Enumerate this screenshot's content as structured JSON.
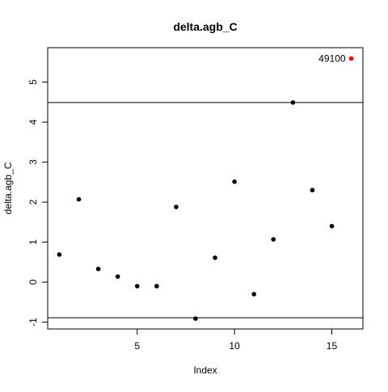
{
  "chart_data": {
    "type": "scatter",
    "title": "delta.agb_C",
    "xlabel": "Index",
    "ylabel": "delta.agb_C",
    "xlim": [
      0.4,
      16.6
    ],
    "ylim": [
      -1.17,
      5.86
    ],
    "x_ticks": [
      5,
      10,
      15
    ],
    "y_ticks": [
      -1,
      0,
      1,
      2,
      3,
      4,
      5
    ],
    "grid": false,
    "legend": "none",
    "points": [
      {
        "x": 1,
        "y": 0.69
      },
      {
        "x": 2,
        "y": 2.07
      },
      {
        "x": 3,
        "y": 0.33
      },
      {
        "x": 4,
        "y": 0.14
      },
      {
        "x": 5,
        "y": -0.1
      },
      {
        "x": 6,
        "y": -0.1
      },
      {
        "x": 7,
        "y": 1.88
      },
      {
        "x": 8,
        "y": -0.91
      },
      {
        "x": 9,
        "y": 0.61
      },
      {
        "x": 10,
        "y": 2.51
      },
      {
        "x": 11,
        "y": -0.3
      },
      {
        "x": 12,
        "y": 1.07
      },
      {
        "x": 13,
        "y": 4.49
      },
      {
        "x": 14,
        "y": 2.3
      },
      {
        "x": 15,
        "y": 1.4
      },
      {
        "x": 16,
        "y": 5.59,
        "label": "49100",
        "highlight": true
      }
    ],
    "reference_lines": [
      {
        "orientation": "horizontal",
        "y": 4.49
      },
      {
        "orientation": "horizontal",
        "y": -0.89
      }
    ],
    "point_color": "#000000",
    "highlight_color": "#ff0000",
    "line_color": "#000000"
  }
}
